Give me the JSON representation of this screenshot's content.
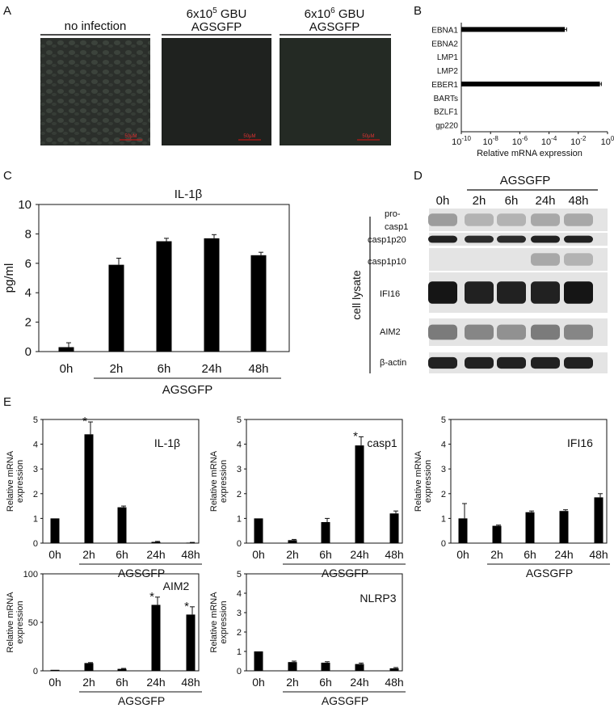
{
  "panel_letters": {
    "A": "A",
    "B": "B",
    "C": "C",
    "D": "D",
    "E": "E"
  },
  "panel_a": {
    "columns": [
      {
        "line1": "no infection",
        "sup": "",
        "line1b": "",
        "line2": ""
      },
      {
        "line1": "6x10",
        "sup": "5",
        "line1b": " GBU",
        "line2": "AGSGFP"
      },
      {
        "line1": "6x10",
        "sup": "6",
        "line1b": " GBU",
        "line2": "AGSGFP"
      }
    ],
    "scale_label": "50μM"
  },
  "panel_b": {
    "xlabel": "Relative mRNA expression",
    "ticks": [
      {
        "base": "10",
        "exp": "-10"
      },
      {
        "base": "10",
        "exp": "-8"
      },
      {
        "base": "10",
        "exp": "-6"
      },
      {
        "base": "10",
        "exp": "-4"
      },
      {
        "base": "10",
        "exp": "-2"
      },
      {
        "base": "10",
        "exp": "0"
      }
    ]
  },
  "panel_c": {
    "title": "IL-1β",
    "ylabel": "pg/ml",
    "group_label": "AGSGFP"
  },
  "panel_d": {
    "header": "AGSGFP",
    "lanes": [
      "0h",
      "2h",
      "6h",
      "24h",
      "48h"
    ],
    "side_label": "cell lysate",
    "bands": [
      {
        "label1": "pro-",
        "label2": "casp1"
      },
      {
        "label1": "casp1p20",
        "label2": ""
      },
      {
        "label1": "casp1p10",
        "label2": ""
      },
      {
        "label1": "IFI16",
        "label2": ""
      },
      {
        "label1": "AIM2",
        "label2": ""
      },
      {
        "label1": "β-actin",
        "label2": ""
      }
    ]
  },
  "panel_e": {
    "ylabel1": "Relative mRNA",
    "ylabel2": "expression",
    "group_label": "AGSGFP",
    "star": "*"
  },
  "chart_data": [
    {
      "id": "B",
      "type": "bar",
      "orientation": "horizontal",
      "categories": [
        "EBNA1",
        "EBNA2",
        "LMP1",
        "LMP2",
        "EBER1",
        "BARTs",
        "BZLF1",
        "gp220"
      ],
      "values": [
        0.0012,
        null,
        null,
        null,
        0.3,
        null,
        null,
        null
      ],
      "errors": [
        0.0004,
        null,
        null,
        null,
        0.08,
        null,
        null,
        null
      ],
      "log_scale": true,
      "xlim_exp": [
        -10,
        0
      ],
      "xlabel": "Relative mRNA expression"
    },
    {
      "id": "C",
      "type": "bar",
      "title": "IL-1β",
      "categories": [
        "0h",
        "2h",
        "6h",
        "24h",
        "48h"
      ],
      "values": [
        0.3,
        5.9,
        7.5,
        7.7,
        6.55
      ],
      "errors": [
        0.3,
        0.45,
        0.2,
        0.25,
        0.2
      ],
      "ylabel": "pg/ml",
      "ylim": [
        0,
        10
      ],
      "yticks": [
        0,
        2,
        4,
        6,
        8,
        10
      ],
      "group_label": "AGSGFP"
    },
    {
      "id": "E1",
      "type": "bar",
      "title": "IL-1β",
      "categories": [
        "0h",
        "2h",
        "6h",
        "24h",
        "48h"
      ],
      "values": [
        1,
        4.4,
        1.45,
        0.05,
        0.02
      ],
      "errors": [
        0,
        0.5,
        0.05,
        0.02,
        0.01
      ],
      "significant": [
        false,
        true,
        false,
        false,
        false
      ],
      "ylim": [
        0,
        5
      ],
      "yticks": [
        0,
        1,
        2,
        3,
        4,
        5
      ]
    },
    {
      "id": "E2",
      "type": "bar",
      "title": "casp1",
      "categories": [
        "0h",
        "2h",
        "6h",
        "24h",
        "48h"
      ],
      "values": [
        1,
        0.12,
        0.85,
        3.95,
        1.2
      ],
      "errors": [
        0,
        0.03,
        0.15,
        0.35,
        0.1
      ],
      "significant": [
        false,
        false,
        false,
        true,
        false
      ],
      "ylim": [
        0,
        5
      ],
      "yticks": [
        0,
        1,
        2,
        3,
        4,
        5
      ]
    },
    {
      "id": "E3",
      "type": "bar",
      "title": "IFI16",
      "categories": [
        "0h",
        "2h",
        "6h",
        "24h",
        "48h"
      ],
      "values": [
        1,
        0.7,
        1.25,
        1.3,
        1.85
      ],
      "errors": [
        0.6,
        0.03,
        0.05,
        0.05,
        0.15
      ],
      "significant": [
        false,
        false,
        false,
        false,
        false
      ],
      "ylim": [
        0,
        5
      ],
      "yticks": [
        0,
        1,
        2,
        3,
        4,
        5
      ]
    },
    {
      "id": "E4",
      "type": "bar",
      "title": "AIM2",
      "categories": [
        "0h",
        "2h",
        "6h",
        "24h",
        "48h"
      ],
      "values": [
        1,
        8,
        2,
        68,
        58
      ],
      "errors": [
        0,
        0.5,
        0.5,
        8,
        8
      ],
      "significant": [
        false,
        false,
        false,
        true,
        true
      ],
      "ylim": [
        0,
        100
      ],
      "yticks": [
        0,
        50,
        100
      ]
    },
    {
      "id": "E5",
      "type": "bar",
      "title": "NLRP3",
      "categories": [
        "0h",
        "2h",
        "6h",
        "24h",
        "48h"
      ],
      "values": [
        1,
        0.45,
        0.42,
        0.35,
        0.13
      ],
      "errors": [
        0,
        0.05,
        0.05,
        0.05,
        0.04
      ],
      "significant": [
        false,
        false,
        false,
        false,
        false
      ],
      "ylim": [
        0,
        5
      ],
      "yticks": [
        0,
        1,
        2,
        3,
        4,
        5
      ]
    }
  ]
}
